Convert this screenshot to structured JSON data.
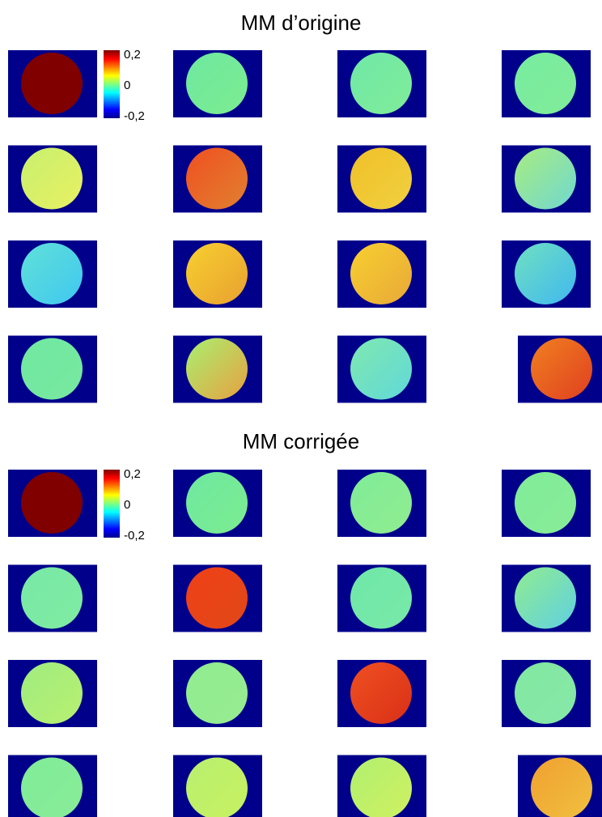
{
  "panels": [
    {
      "title": "MM d’origine",
      "colorbar": {
        "ticks": [
          "0,2",
          "0",
          "-0,2"
        ]
      }
    },
    {
      "title": "MM corrigée",
      "colorbar": {
        "ticks": [
          "0,2",
          "0",
          "-0,2"
        ]
      }
    }
  ]
}
